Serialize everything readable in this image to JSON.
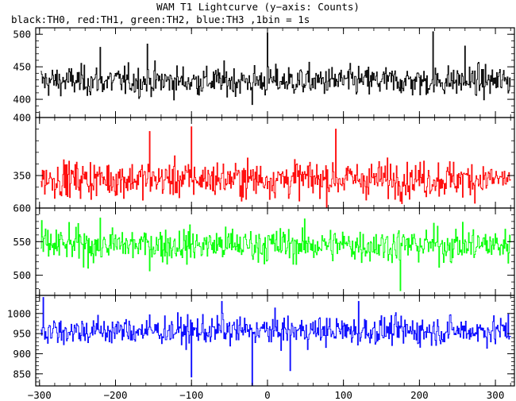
{
  "title": "WAM T1 Lightcurve (y−axis: Counts)",
  "subtitle": "black:TH0, red:TH1, green:TH2, blue:TH3 ,1bin = 1s",
  "chart_data": {
    "type": "line",
    "x_range": [
      -305,
      325
    ],
    "x_ticks": [
      -300,
      -200,
      -100,
      0,
      100,
      200,
      300
    ],
    "x_tick_labels": [
      "−300",
      "−200",
      "−100",
      "0",
      "100",
      "200",
      "300"
    ],
    "bin_seconds": 1,
    "x_start": -298,
    "x_end": 320,
    "panels": [
      {
        "name": "TH0",
        "color": "#000000",
        "ylim": [
          372,
          510
        ],
        "y_ticks": [
          400,
          450,
          500
        ],
        "y_tick_labels": [
          "400",
          "450",
          "500"
        ],
        "mean": 428,
        "spread": 16,
        "dips": [
          [
            -20,
            392
          ]
        ],
        "peaks": [
          [
            -158,
            485
          ],
          [
            0,
            502
          ],
          [
            218,
            504
          ],
          [
            -220,
            480
          ],
          [
            260,
            482
          ]
        ]
      },
      {
        "name": "TH1",
        "color": "#ff0000",
        "ylim": [
          322,
          400
        ],
        "y_ticks": [
          350,
          400
        ],
        "y_tick_labels": [
          "350",
          "400"
        ],
        "minor_visible": [
          375
        ],
        "mean": 347,
        "spread": 11,
        "dips": [],
        "peaks": [
          [
            -100,
            392
          ],
          [
            90,
            390
          ],
          [
            -155,
            388
          ]
        ]
      },
      {
        "name": "TH2",
        "color": "#00ff00",
        "ylim": [
          470,
          600
        ],
        "y_ticks": [
          500,
          550,
          600
        ],
        "y_tick_labels": [
          "500",
          "550",
          "600"
        ],
        "mean": 545,
        "spread": 18,
        "dips": [
          [
            175,
            477
          ]
        ],
        "peaks": []
      },
      {
        "name": "TH3",
        "color": "#0000ff",
        "ylim": [
          820,
          1045
        ],
        "y_ticks": [
          850,
          900,
          950,
          1000
        ],
        "y_tick_labels": [
          "850",
          "900",
          "950",
          "1000"
        ],
        "mean": 957,
        "spread": 25,
        "dips": [
          [
            -20,
            818
          ],
          [
            -100,
            842
          ],
          [
            30,
            858
          ]
        ],
        "peaks": [
          [
            -295,
            1040
          ],
          [
            -60,
            1030
          ],
          [
            120,
            1030
          ]
        ]
      }
    ]
  }
}
